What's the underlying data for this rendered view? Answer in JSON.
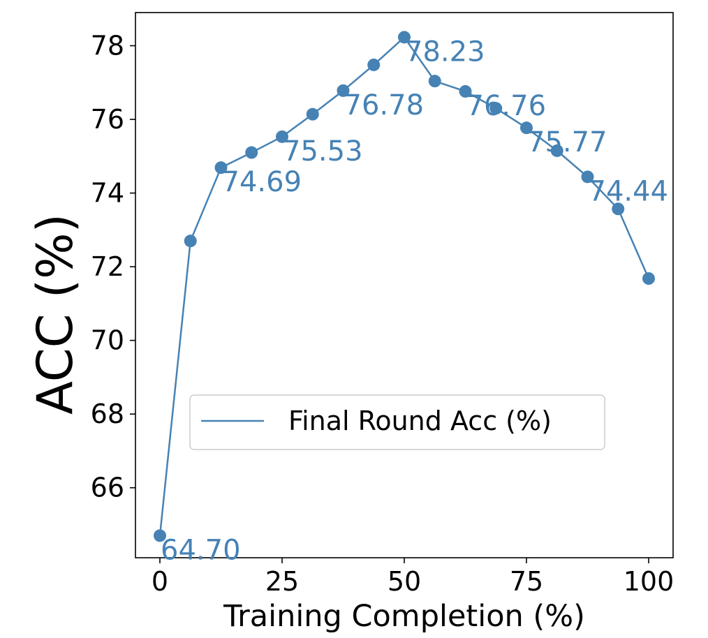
{
  "chart_data": {
    "type": "line",
    "xlabel": "Training Completion (%)",
    "ylabel": "ACC (%)",
    "xlim": [
      -5,
      105
    ],
    "ylim": [
      64.1,
      78.9
    ],
    "xticks": [
      0,
      25,
      50,
      75,
      100
    ],
    "yticks": [
      66,
      68,
      70,
      72,
      74,
      76,
      78
    ],
    "legend": {
      "placement": "center",
      "entries": [
        "Final Round Acc (%)"
      ]
    },
    "grid": false,
    "color": "#4682b4",
    "series": [
      {
        "name": "Final Round Acc (%)",
        "x": [
          0,
          6.25,
          12.5,
          18.75,
          25,
          31.25,
          37.5,
          43.75,
          50,
          56.25,
          62.5,
          68.75,
          75,
          81.25,
          87.5,
          93.75,
          100
        ],
        "values": [
          64.7,
          72.7,
          74.69,
          75.1,
          75.53,
          76.14,
          76.78,
          77.48,
          78.23,
          77.04,
          76.76,
          76.3,
          75.77,
          75.15,
          74.44,
          73.57,
          71.68
        ]
      }
    ],
    "annotations": [
      {
        "x": 0,
        "y": 64.7,
        "text": "64.70"
      },
      {
        "x": 12.5,
        "y": 74.69,
        "text": "74.69"
      },
      {
        "x": 25,
        "y": 75.53,
        "text": "75.53"
      },
      {
        "x": 37.5,
        "y": 76.78,
        "text": "76.78"
      },
      {
        "x": 50,
        "y": 78.23,
        "text": "78.23"
      },
      {
        "x": 62.5,
        "y": 76.76,
        "text": "76.76"
      },
      {
        "x": 75,
        "y": 75.77,
        "text": "75.77"
      },
      {
        "x": 87.5,
        "y": 74.44,
        "text": "74.44"
      }
    ]
  }
}
